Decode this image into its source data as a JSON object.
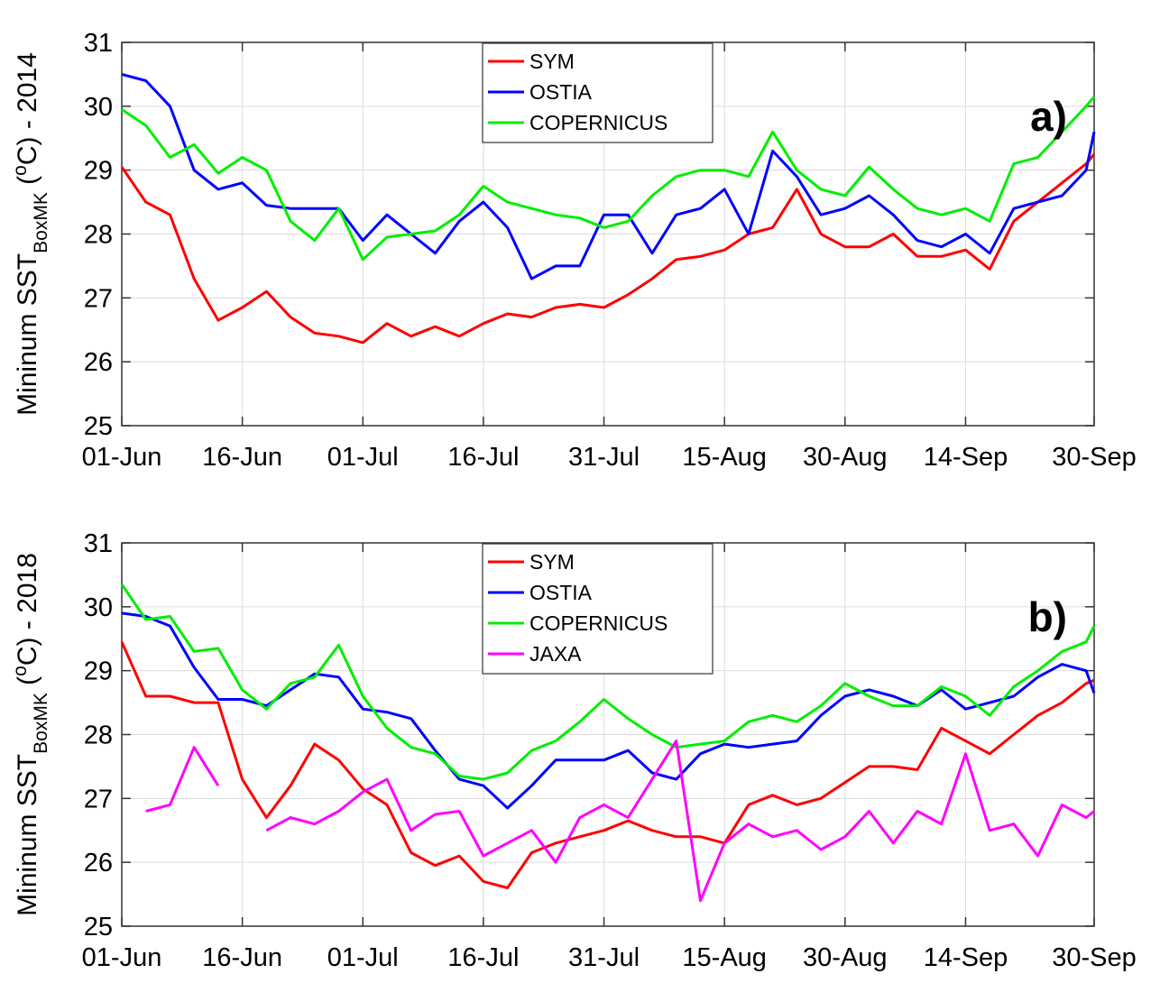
{
  "chart_data": [
    {
      "type": "line",
      "annotation": "a)",
      "y_label": [
        "Mininum SST",
        "BoxMK",
        " (",
        "o",
        "C) - 2014"
      ],
      "x": [
        "01-Jun",
        "04-Jun",
        "07-Jun",
        "10-Jun",
        "13-Jun",
        "16-Jun",
        "19-Jun",
        "22-Jun",
        "25-Jun",
        "28-Jun",
        "01-Jul",
        "04-Jul",
        "07-Jul",
        "10-Jul",
        "13-Jul",
        "16-Jul",
        "19-Jul",
        "22-Jul",
        "25-Jul",
        "28-Jul",
        "31-Jul",
        "03-Aug",
        "06-Aug",
        "09-Aug",
        "12-Aug",
        "15-Aug",
        "18-Aug",
        "21-Aug",
        "24-Aug",
        "27-Aug",
        "30-Aug",
        "02-Sep",
        "05-Sep",
        "08-Sep",
        "11-Sep",
        "14-Sep",
        "17-Sep",
        "20-Sep",
        "23-Sep",
        "26-Sep",
        "29-Sep",
        "30-Sep"
      ],
      "xlim": [
        "01-Jun",
        "30-Sep"
      ],
      "xticks": [
        "01-Jun",
        "16-Jun",
        "01-Jul",
        "16-Jul",
        "31-Jul",
        "15-Aug",
        "30-Aug",
        "14-Sep",
        "30-Sep"
      ],
      "ylim": [
        25,
        31
      ],
      "yticks": [
        25,
        26,
        27,
        28,
        29,
        30,
        31
      ],
      "grid": true,
      "legend": "upper center",
      "series": [
        {
          "name": "SYM",
          "color": "#ff0000",
          "values": [
            29.05,
            28.5,
            28.3,
            27.3,
            26.65,
            26.85,
            27.1,
            26.7,
            26.45,
            26.4,
            26.3,
            26.6,
            26.4,
            26.55,
            26.4,
            26.6,
            26.75,
            26.7,
            26.85,
            26.9,
            26.85,
            27.05,
            27.3,
            27.6,
            27.65,
            27.75,
            28.0,
            28.1,
            28.7,
            28.0,
            27.8,
            27.8,
            28.0,
            27.65,
            27.65,
            27.75,
            27.45,
            28.2,
            28.5,
            28.8,
            29.1,
            29.25
          ]
        },
        {
          "name": "OSTIA",
          "color": "#0000ff",
          "values": [
            30.5,
            30.4,
            30.0,
            29.0,
            28.7,
            28.8,
            28.45,
            28.4,
            28.4,
            28.4,
            27.9,
            28.3,
            28.0,
            27.7,
            28.2,
            28.5,
            28.1,
            27.3,
            27.5,
            27.5,
            28.3,
            28.3,
            27.7,
            28.3,
            28.4,
            28.7,
            28.0,
            29.3,
            28.9,
            28.3,
            28.4,
            28.6,
            28.3,
            27.9,
            27.8,
            28.0,
            27.7,
            28.4,
            28.5,
            28.6,
            29.0,
            29.6
          ]
        },
        {
          "name": "COPERNICUS",
          "color": "#00ee00",
          "values": [
            29.95,
            29.7,
            29.2,
            29.4,
            28.95,
            29.2,
            29.0,
            28.2,
            27.9,
            28.4,
            27.6,
            27.95,
            28.0,
            28.05,
            28.3,
            28.75,
            28.5,
            28.4,
            28.3,
            28.25,
            28.1,
            28.2,
            28.6,
            28.9,
            29.0,
            29.0,
            28.9,
            29.6,
            29.0,
            28.7,
            28.6,
            29.05,
            28.7,
            28.4,
            28.3,
            28.4,
            28.2,
            29.1,
            29.2,
            29.6,
            30.0,
            30.15
          ]
        }
      ]
    },
    {
      "type": "line",
      "annotation": "b)",
      "y_label": [
        "Mininum SST",
        "BoxMK",
        " (",
        "o",
        "C) - 2018"
      ],
      "x": [
        "01-Jun",
        "04-Jun",
        "07-Jun",
        "10-Jun",
        "13-Jun",
        "16-Jun",
        "19-Jun",
        "22-Jun",
        "25-Jun",
        "28-Jun",
        "01-Jul",
        "04-Jul",
        "07-Jul",
        "10-Jul",
        "13-Jul",
        "16-Jul",
        "19-Jul",
        "22-Jul",
        "25-Jul",
        "28-Jul",
        "31-Jul",
        "03-Aug",
        "06-Aug",
        "09-Aug",
        "12-Aug",
        "15-Aug",
        "18-Aug",
        "21-Aug",
        "24-Aug",
        "27-Aug",
        "30-Aug",
        "02-Sep",
        "05-Sep",
        "08-Sep",
        "11-Sep",
        "14-Sep",
        "17-Sep",
        "20-Sep",
        "23-Sep",
        "26-Sep",
        "29-Sep",
        "30-Sep"
      ],
      "xlim": [
        "01-Jun",
        "30-Sep"
      ],
      "xticks": [
        "01-Jun",
        "16-Jun",
        "01-Jul",
        "16-Jul",
        "31-Jul",
        "15-Aug",
        "30-Aug",
        "14-Sep",
        "30-Sep"
      ],
      "ylim": [
        25,
        31
      ],
      "yticks": [
        25,
        26,
        27,
        28,
        29,
        30,
        31
      ],
      "grid": true,
      "legend": "upper center",
      "series": [
        {
          "name": "SYM",
          "color": "#ff0000",
          "values": [
            29.45,
            28.6,
            28.6,
            28.5,
            28.5,
            27.3,
            26.7,
            27.2,
            27.85,
            27.6,
            27.15,
            26.9,
            26.15,
            25.95,
            26.1,
            25.7,
            25.6,
            26.15,
            26.3,
            26.4,
            26.5,
            26.65,
            26.5,
            26.4,
            26.4,
            26.3,
            26.9,
            27.05,
            26.9,
            27.0,
            27.25,
            27.5,
            27.5,
            27.45,
            28.1,
            27.9,
            27.7,
            28.0,
            28.3,
            28.5,
            28.8,
            28.85
          ]
        },
        {
          "name": "OSTIA",
          "color": "#0000ff",
          "values": [
            29.9,
            29.85,
            29.7,
            29.05,
            28.55,
            28.55,
            28.45,
            28.7,
            28.95,
            28.9,
            28.4,
            28.35,
            28.25,
            27.75,
            27.3,
            27.2,
            26.85,
            27.2,
            27.6,
            27.6,
            27.6,
            27.75,
            27.4,
            27.3,
            27.7,
            27.85,
            27.8,
            27.85,
            27.9,
            28.3,
            28.6,
            28.7,
            28.6,
            28.45,
            28.7,
            28.4,
            28.5,
            28.6,
            28.9,
            29.1,
            29.0,
            28.65
          ]
        },
        {
          "name": "COPERNICUS",
          "color": "#00ee00",
          "values": [
            30.35,
            29.8,
            29.85,
            29.3,
            29.35,
            28.7,
            28.4,
            28.8,
            28.9,
            29.4,
            28.6,
            28.1,
            27.8,
            27.7,
            27.35,
            27.3,
            27.4,
            27.75,
            27.9,
            28.2,
            28.55,
            28.25,
            28.0,
            27.8,
            27.85,
            27.9,
            28.2,
            28.3,
            28.2,
            28.45,
            28.8,
            28.6,
            28.45,
            28.45,
            28.75,
            28.6,
            28.3,
            28.75,
            29.0,
            29.3,
            29.45,
            29.7
          ]
        },
        {
          "name": "JAXA",
          "color": "#ff00ff",
          "values": [
            null,
            26.8,
            26.9,
            27.8,
            27.2,
            null,
            26.5,
            26.7,
            26.6,
            26.8,
            27.1,
            27.3,
            26.5,
            26.75,
            26.8,
            26.1,
            26.3,
            26.5,
            26.0,
            26.7,
            26.9,
            26.7,
            27.3,
            27.9,
            25.4,
            26.3,
            26.6,
            26.4,
            26.5,
            26.2,
            26.4,
            26.8,
            26.3,
            26.8,
            26.6,
            27.7,
            26.5,
            26.6,
            26.1,
            26.9,
            26.7,
            26.8
          ]
        }
      ]
    }
  ]
}
